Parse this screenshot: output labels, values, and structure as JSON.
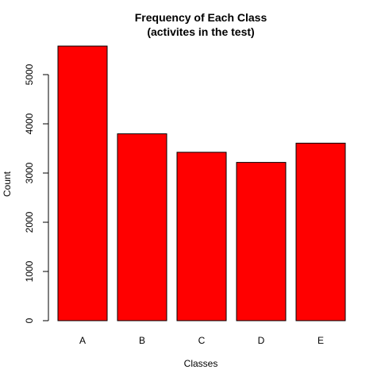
{
  "chart_data": {
    "type": "bar",
    "title": "Frequency of Each Class",
    "subtitle": "(activites in the test)",
    "xlabel": "Classes",
    "ylabel": "Count",
    "categories": [
      "A",
      "B",
      "C",
      "D",
      "E"
    ],
    "values": [
      5580,
      3797,
      3422,
      3216,
      3607
    ],
    "ylim": [
      0,
      5900
    ],
    "yticks": [
      0,
      1000,
      2000,
      3000,
      4000,
      5000
    ],
    "ytick_labels": [
      "0",
      "1000",
      "2000",
      "3000",
      "4000",
      "5000"
    ],
    "bar_color": "#ff0000",
    "bar_border_color": "#000000",
    "grid": false,
    "legend": "none"
  }
}
